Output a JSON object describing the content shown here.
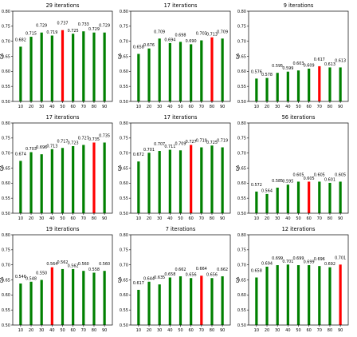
{
  "colors": {
    "normal": "#008000",
    "highlight": "#ff0000",
    "axis": "#000000",
    "text": "#000000"
  },
  "chart_data": [
    {
      "type": "bar",
      "title": "29 iterations",
      "ylabel": "CA",
      "ylim": [
        0.5,
        0.8
      ],
      "categories": [
        "10",
        "20",
        "30",
        "40",
        "50",
        "60",
        "70",
        "80",
        "90"
      ],
      "values": [
        0.682,
        0.715,
        0.729,
        0.719,
        0.737,
        0.725,
        0.733,
        0.729,
        0.729
      ],
      "labels": [
        "0.682",
        "0.715",
        "0.729",
        "0.719",
        "0.737",
        "0.725",
        "0.733",
        "0.729",
        "0.729"
      ],
      "highlight_index": 4,
      "yticks": [
        "0.50",
        "0.55",
        "0.60",
        "0.65",
        "0.70",
        "0.75",
        "0.80"
      ]
    },
    {
      "type": "bar",
      "title": "17 iterations",
      "ylabel": "CA",
      "ylim": [
        0.5,
        0.8
      ],
      "categories": [
        "10",
        "20",
        "30",
        "40",
        "50",
        "60",
        "70",
        "80",
        "90"
      ],
      "values": [
        0.658,
        0.676,
        0.709,
        0.694,
        0.698,
        0.69,
        0.703,
        0.713,
        0.709
      ],
      "labels": [
        "0.658",
        "0.676",
        "0.709",
        "0.694",
        "0.698",
        "0.690",
        "0.703",
        "0.713",
        "0.709"
      ],
      "highlight_index": 7,
      "yticks": [
        "0.50",
        "0.55",
        "0.60",
        "0.65",
        "0.70",
        "0.75",
        "0.80"
      ]
    },
    {
      "type": "bar",
      "title": "9 iterations",
      "ylabel": "CA",
      "ylim": [
        0.5,
        0.8
      ],
      "categories": [
        "10",
        "20",
        "30",
        "40",
        "50",
        "60",
        "70",
        "80",
        "90"
      ],
      "values": [
        0.576,
        0.578,
        0.595,
        0.599,
        0.603,
        0.609,
        0.617,
        0.613,
        0.613
      ],
      "labels": [
        "0.576",
        "0.578",
        "0.595",
        "0.599",
        "0.603",
        "0.609",
        "0.617",
        "0.613",
        "0.613"
      ],
      "highlight_index": 6,
      "yticks": [
        "0.50",
        "0.55",
        "0.60",
        "0.65",
        "0.70",
        "0.75",
        "0.80"
      ]
    },
    {
      "type": "bar",
      "title": "17 iterations",
      "ylabel": "CA",
      "ylim": [
        0.5,
        0.8
      ],
      "categories": [
        "10",
        "20",
        "30",
        "40",
        "50",
        "60",
        "70",
        "80",
        "90"
      ],
      "values": [
        0.674,
        0.703,
        0.696,
        0.713,
        0.717,
        0.723,
        0.727,
        0.735,
        0.735
      ],
      "labels": [
        "0.674",
        "0.703",
        "0.696",
        "0.713",
        "0.717",
        "0.723",
        "0.727",
        "0.735",
        "0.735"
      ],
      "highlight_index": 7,
      "yticks": [
        "0.50",
        "0.55",
        "0.60",
        "0.65",
        "0.70",
        "0.75",
        "0.80"
      ]
    },
    {
      "type": "bar",
      "title": "17 iterations",
      "ylabel": "CA",
      "ylim": [
        0.5,
        0.8
      ],
      "categories": [
        "10",
        "20",
        "30",
        "40",
        "50",
        "60",
        "70",
        "80",
        "90"
      ],
      "values": [
        0.672,
        0.701,
        0.707,
        0.711,
        0.709,
        0.727,
        0.719,
        0.725,
        0.719
      ],
      "labels": [
        "0.672",
        "0.701",
        "0.707",
        "0.711",
        "0.709",
        "0.727",
        "0.719",
        "0.725",
        "0.719"
      ],
      "highlight_index": 5,
      "yticks": [
        "0.50",
        "0.55",
        "0.60",
        "0.65",
        "0.70",
        "0.75",
        "0.80"
      ]
    },
    {
      "type": "bar",
      "title": "56 iterations",
      "ylabel": "CA",
      "ylim": [
        0.5,
        0.8
      ],
      "categories": [
        "10",
        "20",
        "30",
        "40",
        "50",
        "60",
        "70",
        "80",
        "90"
      ],
      "values": [
        0.572,
        0.564,
        0.585,
        0.595,
        0.605,
        0.605,
        0.605,
        0.601,
        0.605
      ],
      "labels": [
        "0.572",
        "0.564",
        "0.585",
        "0.595",
        "0.605",
        "0.605",
        "0.605",
        "0.601",
        "0.605"
      ],
      "highlight_index": 5,
      "yticks": [
        "0.50",
        "0.55",
        "0.60",
        "0.65",
        "0.70",
        "0.75",
        "0.80"
      ]
    },
    {
      "type": "bar",
      "title": "19 iterations",
      "ylabel": "CA",
      "ylim": [
        0.5,
        0.6
      ],
      "categories": [
        "10",
        "20",
        "30",
        "40",
        "50",
        "60",
        "70",
        "80",
        "90"
      ],
      "values": [
        0.546,
        0.548,
        0.55,
        0.564,
        0.562,
        0.562,
        0.56,
        0.558,
        0.56
      ],
      "labels": [
        "0.546",
        "0.548",
        "0.550",
        "0.564",
        "0.562",
        "0.562",
        "0.560",
        "0.558",
        "0.560"
      ],
      "highlight_index": 3,
      "yticks": [
        "0.50",
        "0.55",
        "0.60",
        "0.65",
        "0.70",
        "0.75",
        "0.80"
      ]
    },
    {
      "type": "bar",
      "title": "7 iterations",
      "ylabel": "CA",
      "ylim": [
        0.5,
        0.8
      ],
      "categories": [
        "10",
        "20",
        "30",
        "40",
        "50",
        "60",
        "70",
        "80",
        "90"
      ],
      "values": [
        0.617,
        0.644,
        0.635,
        0.658,
        0.662,
        0.656,
        0.664,
        0.656,
        0.662
      ],
      "labels": [
        "0.617",
        "0.644",
        "0.635",
        "0.658",
        "0.662",
        "0.656",
        "0.664",
        "0.656",
        "0.662"
      ],
      "highlight_index": 6,
      "yticks": [
        "0.50",
        "0.55",
        "0.60",
        "0.65",
        "0.70",
        "0.75",
        "0.80"
      ]
    },
    {
      "type": "bar",
      "title": "12 iterations",
      "ylabel": "CA",
      "ylim": [
        0.5,
        0.8
      ],
      "categories": [
        "10",
        "20",
        "30",
        "40",
        "50",
        "60",
        "70",
        "80",
        "90"
      ],
      "values": [
        0.658,
        0.694,
        0.699,
        0.701,
        0.699,
        0.699,
        0.696,
        0.692,
        0.701
      ],
      "labels": [
        "0.658",
        "0.694",
        "0.699",
        "0.701",
        "0.699",
        "0.699",
        "0.696",
        "0.692",
        "0.701"
      ],
      "highlight_index": 8,
      "yticks": [
        "0.50",
        "0.55",
        "0.60",
        "0.65",
        "0.70",
        "0.75",
        "0.80"
      ]
    }
  ]
}
